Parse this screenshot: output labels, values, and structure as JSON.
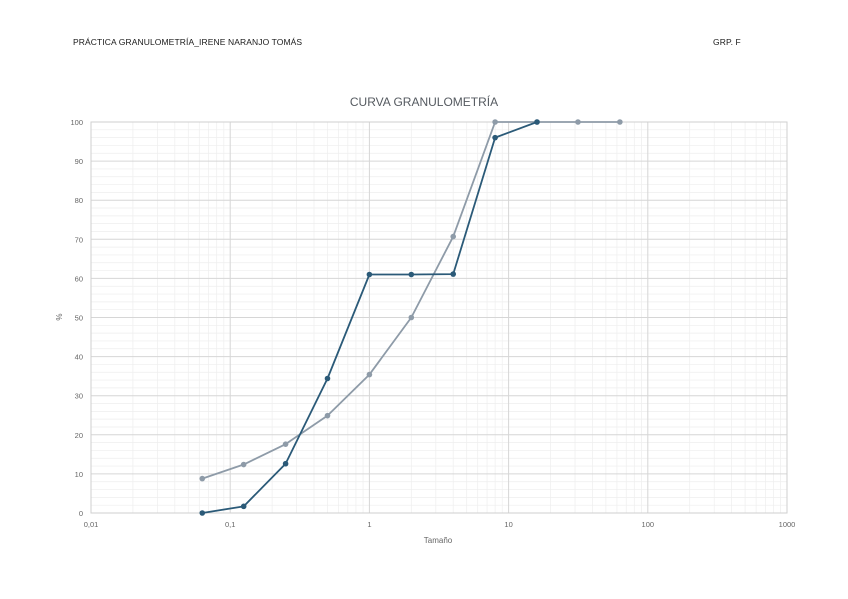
{
  "header": {
    "left": "PRÁCTICA GRANULOMETRÍA_IRENE NARANJO TOMÁS",
    "right": "GRP. F"
  },
  "chart_data": {
    "type": "line",
    "title": "CURVA GRANULOMETRÍA",
    "xlabel": "Tamaño",
    "ylabel": "%",
    "xscale": "log",
    "xlim": [
      0.01,
      1000
    ],
    "ylim": [
      0,
      100
    ],
    "x_tick_labels": [
      "0,01",
      "0,1",
      "1",
      "10",
      "100",
      "1000"
    ],
    "y_tick_labels": [
      "0",
      "10",
      "20",
      "30",
      "40",
      "50",
      "60",
      "70",
      "80",
      "90",
      "100"
    ],
    "grid": true,
    "legend": "none",
    "series": [
      {
        "color": "#2b5a78",
        "x": [
          0.063,
          0.125,
          0.25,
          0.5,
          1,
          2,
          4,
          8,
          16
        ],
        "y": [
          0,
          1.7,
          12.6,
          34.4,
          61,
          61,
          61.1,
          96,
          100
        ]
      },
      {
        "color": "#8e9ba8",
        "x": [
          0.063,
          0.125,
          0.25,
          0.5,
          1,
          2,
          4,
          8,
          16,
          31.5,
          63
        ],
        "y": [
          8.8,
          12.4,
          17.6,
          24.9,
          35.4,
          50,
          70.7,
          100,
          100,
          100,
          100
        ]
      }
    ]
  }
}
